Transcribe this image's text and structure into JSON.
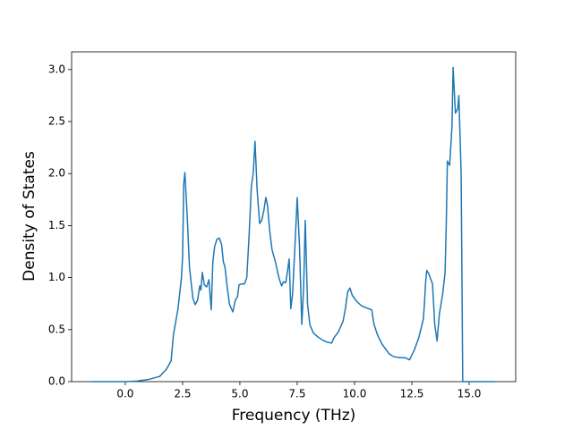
{
  "chart_data": {
    "type": "line",
    "xlabel": "Frequency (THz)",
    "ylabel": "Density of States",
    "x": [
      -1.48,
      0,
      0.5,
      1.0,
      1.5,
      1.8,
      2.0,
      2.1,
      2.3,
      2.45,
      2.5,
      2.55,
      2.6,
      2.7,
      2.8,
      2.95,
      3.05,
      3.15,
      3.25,
      3.3,
      3.36,
      3.45,
      3.55,
      3.65,
      3.75,
      3.82,
      3.9,
      4.0,
      4.1,
      4.2,
      4.28,
      4.35,
      4.45,
      4.55,
      4.69,
      4.8,
      4.9,
      4.96,
      5.1,
      5.2,
      5.3,
      5.4,
      5.5,
      5.58,
      5.66,
      5.75,
      5.86,
      5.95,
      6.05,
      6.13,
      6.2,
      6.3,
      6.4,
      6.55,
      6.7,
      6.82,
      6.9,
      7.0,
      7.1,
      7.15,
      7.22,
      7.3,
      7.4,
      7.5,
      7.6,
      7.7,
      7.78,
      7.85,
      7.95,
      8.05,
      8.2,
      8.4,
      8.6,
      8.8,
      9.0,
      9.1,
      9.3,
      9.5,
      9.6,
      9.7,
      9.8,
      9.9,
      10.1,
      10.3,
      10.5,
      10.75,
      10.85,
      11.0,
      11.2,
      11.5,
      11.7,
      12.0,
      12.2,
      12.4,
      12.6,
      12.8,
      13.0,
      13.05,
      13.1,
      13.15,
      13.25,
      13.4,
      13.5,
      13.6,
      13.7,
      13.85,
      13.95,
      14.0,
      14.05,
      14.15,
      14.25,
      14.3,
      14.4,
      14.5,
      14.55,
      14.65,
      14.72,
      16.13
    ],
    "series": [
      {
        "color": "#1f77b4",
        "values": [
          0,
          0,
          0.005,
          0.02,
          0.05,
          0.12,
          0.2,
          0.45,
          0.7,
          1.0,
          1.2,
          1.9,
          2.01,
          1.6,
          1.1,
          0.8,
          0.74,
          0.78,
          0.92,
          0.88,
          1.05,
          0.93,
          0.91,
          0.98,
          0.69,
          1.15,
          1.3,
          1.37,
          1.38,
          1.32,
          1.15,
          1.1,
          0.9,
          0.74,
          0.67,
          0.78,
          0.82,
          0.93,
          0.94,
          0.94,
          1.0,
          1.4,
          1.88,
          2.0,
          2.31,
          1.85,
          1.52,
          1.55,
          1.65,
          1.77,
          1.7,
          1.45,
          1.27,
          1.15,
          1.0,
          0.92,
          0.96,
          0.95,
          1.1,
          1.18,
          0.7,
          0.85,
          1.3,
          1.77,
          1.3,
          0.55,
          0.9,
          1.55,
          0.75,
          0.55,
          0.47,
          0.43,
          0.4,
          0.38,
          0.37,
          0.42,
          0.48,
          0.58,
          0.7,
          0.86,
          0.9,
          0.83,
          0.77,
          0.73,
          0.71,
          0.69,
          0.55,
          0.45,
          0.36,
          0.27,
          0.24,
          0.23,
          0.23,
          0.21,
          0.3,
          0.42,
          0.6,
          0.75,
          0.95,
          1.07,
          1.03,
          0.94,
          0.55,
          0.39,
          0.65,
          0.85,
          1.05,
          1.5,
          2.12,
          2.08,
          2.45,
          3.02,
          2.58,
          2.62,
          2.75,
          2.0,
          0,
          0
        ]
      }
    ],
    "xlim": [
      -2.34,
      17.03
    ],
    "ylim": [
      0,
      3.17
    ],
    "xticks": [
      {
        "value": 0,
        "label": "0.0"
      },
      2.5,
      {
        "value": 5,
        "label": "5.0"
      },
      7.5,
      {
        "value": 10,
        "label": "10.0"
      },
      12.5,
      {
        "value": 15,
        "label": "15.0"
      }
    ],
    "yticks": [
      {
        "value": 0,
        "label": "0.0"
      },
      0.5,
      {
        "value": 1,
        "label": "1.0"
      },
      1.5,
      {
        "value": 2,
        "label": "2.0"
      },
      2.5,
      {
        "value": 3,
        "label": "3.0"
      }
    ],
    "grid": false
  }
}
